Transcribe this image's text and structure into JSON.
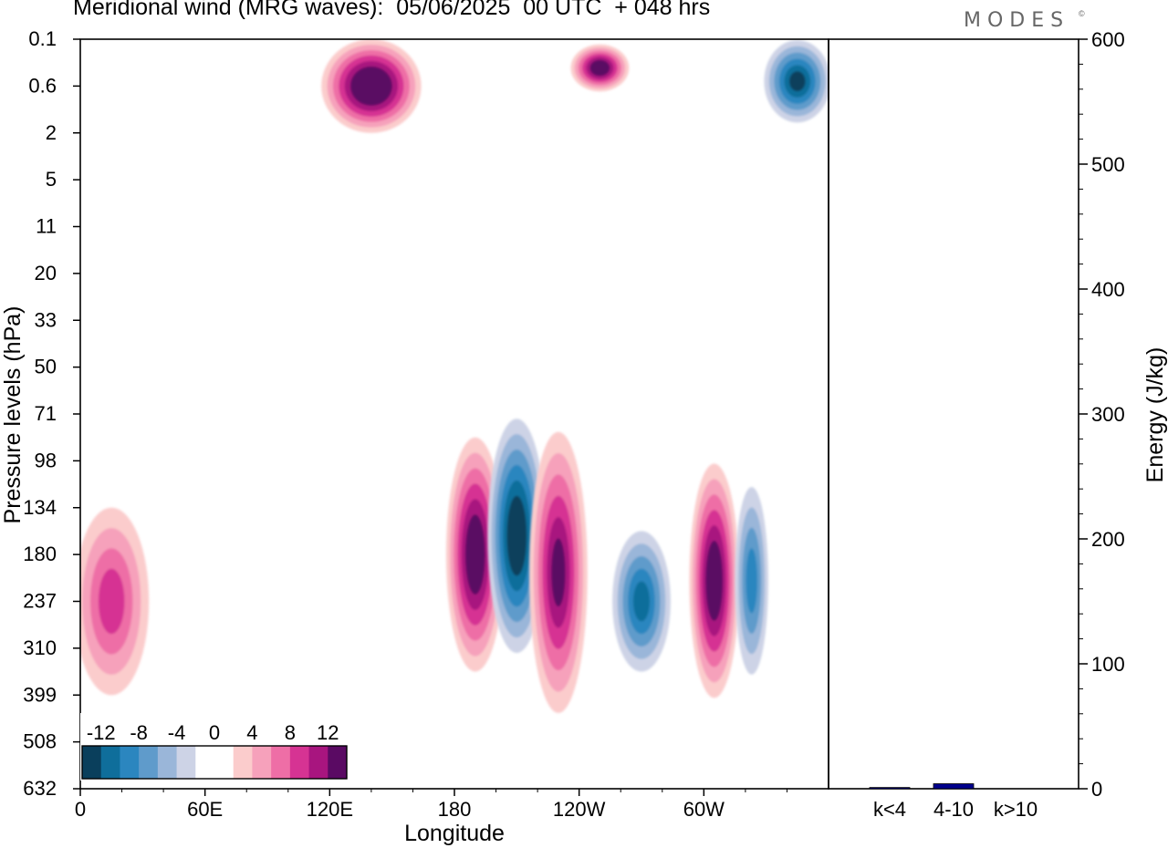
{
  "header": {
    "title": "Meridional wind (MRG waves):  05/06/2025  00 UTC  + 048 hrs",
    "brand": "MODES",
    "brand_mark": "©"
  },
  "chart_data": [
    {
      "type": "heatmap",
      "title": "Meridional wind (MRG waves):  05/06/2025  00 UTC  + 048 hrs",
      "xlabel": "Longitude",
      "ylabel": "Pressure levels (hPa)",
      "x_ticks": [
        "0",
        "60E",
        "120E",
        "180",
        "120W",
        "60W"
      ],
      "y_ticks": [
        "0.1",
        "0.6",
        "2",
        "5",
        "11",
        "20",
        "33",
        "50",
        "71",
        "98",
        "134",
        "180",
        "237",
        "310",
        "399",
        "508",
        "632"
      ],
      "colorbar": {
        "tick_labels": [
          "-12",
          "-8",
          "-4",
          "0",
          "4",
          "8",
          "12"
        ],
        "levels": [
          -14,
          -12,
          -10,
          -8,
          -6,
          -4,
          -2,
          0,
          2,
          4,
          6,
          8,
          10,
          12,
          14
        ],
        "colors": [
          "#0a3f5c",
          "#0f6e9b",
          "#2b86bf",
          "#5f9bcb",
          "#9ab6d9",
          "#cdd3e6",
          "#ffffff",
          "#ffffff",
          "#fbcccc",
          "#f6a1bb",
          "#ee6ea6",
          "#d63393",
          "#a8157f",
          "#5a0a63"
        ]
      },
      "features": [
        {
          "lon": 190,
          "p": 180,
          "value": 14,
          "lon_w": 14,
          "p_from": 98,
          "p_to": 399
        },
        {
          "lon": 210,
          "p": 160,
          "value": -14,
          "lon_w": 14,
          "p_from": 98,
          "p_to": 399
        },
        {
          "lon": 230,
          "p": 200,
          "value": 12,
          "lon_w": 14,
          "p_from": 71,
          "p_to": 399
        },
        {
          "lon": 270,
          "p": 237,
          "value": -10,
          "lon_w": 14,
          "p_from": 134,
          "p_to": 310
        },
        {
          "lon": 305,
          "p": 210,
          "value": 14,
          "lon_w": 12,
          "p_from": 98,
          "p_to": 399
        },
        {
          "lon": 323,
          "p": 210,
          "value": -8,
          "lon_w": 8,
          "p_from": 98,
          "p_to": 310
        },
        {
          "lon": 15,
          "p": 237,
          "value": 8,
          "lon_w": 18,
          "p_from": 134,
          "p_to": 399
        },
        {
          "lon": 140,
          "p": 0.6,
          "value": 16,
          "lon_w": 24,
          "p_from": 0.1,
          "p_to": 2
        },
        {
          "lon": 250,
          "p": 0.3,
          "value": 14,
          "lon_w": 14,
          "p_from": 0.1,
          "p_to": 0.6
        },
        {
          "lon": 345,
          "p": 0.5,
          "value": -12,
          "lon_w": 16,
          "p_from": 0.1,
          "p_to": 1.5
        }
      ]
    },
    {
      "type": "bar",
      "categories": [
        "k<4",
        "4-10",
        "k>10"
      ],
      "values": [
        1,
        4,
        0
      ],
      "ylabel": "Energy (J/kg)",
      "ylim": [
        0,
        600
      ],
      "y_ticks": [
        "0",
        "100",
        "200",
        "300",
        "400",
        "500",
        "600"
      ],
      "colors": [
        "#00008b",
        "#00008b",
        "#00008b"
      ]
    }
  ]
}
